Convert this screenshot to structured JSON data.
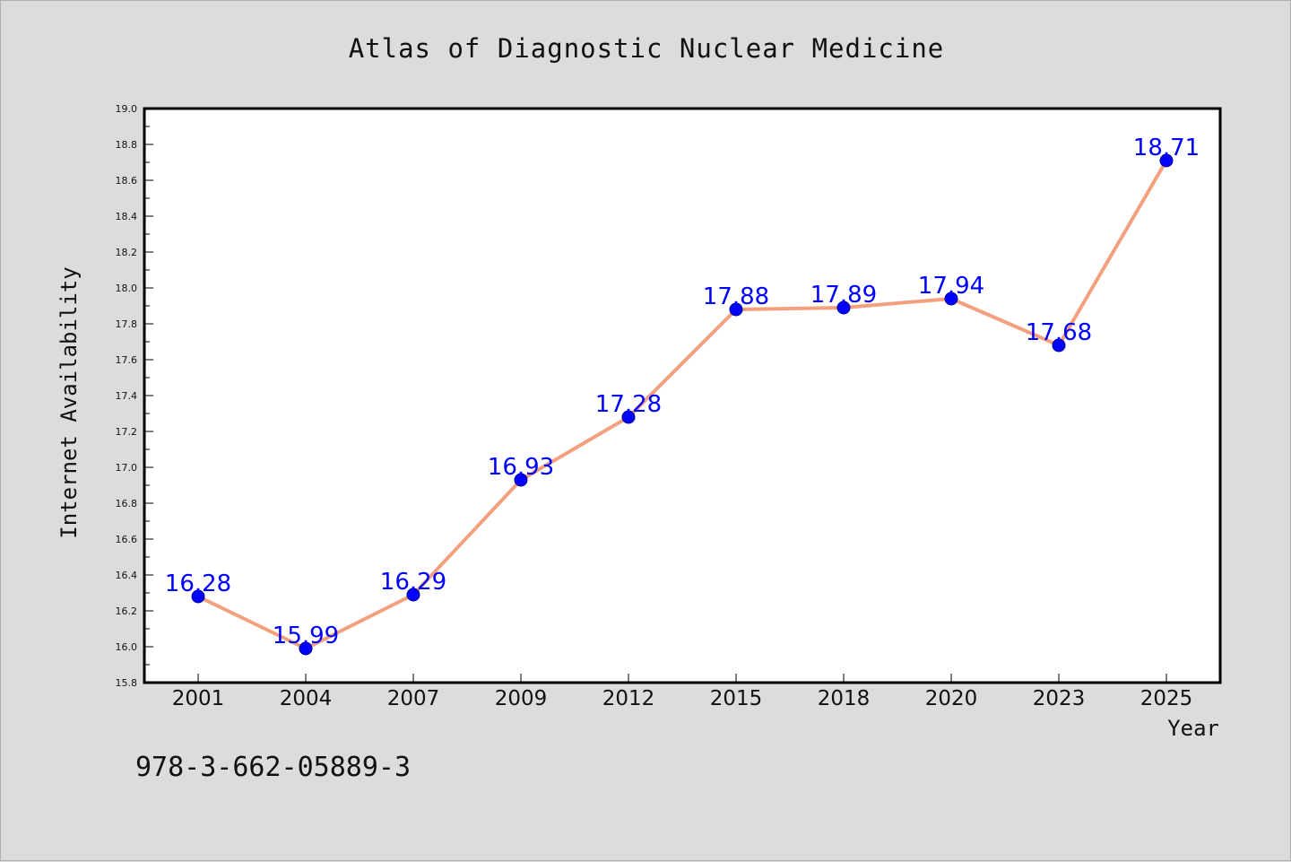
{
  "chart_data": {
    "type": "line",
    "title": "Atlas of Diagnostic Nuclear Medicine",
    "xlabel": "Year",
    "ylabel": "Internet Availability",
    "categories": [
      "2001",
      "2004",
      "2007",
      "2009",
      "2012",
      "2015",
      "2018",
      "2020",
      "2023",
      "2025"
    ],
    "series": [
      {
        "values": [
          16.28,
          15.99,
          16.29,
          16.93,
          17.28,
          17.88,
          17.89,
          17.94,
          17.68,
          18.71
        ],
        "data_labels": [
          "16.28",
          "15.99",
          "16.29",
          "16.93",
          "17.28",
          "17.88",
          "17.89",
          "17.94",
          "17.68",
          "18.71"
        ]
      }
    ],
    "ylim": [
      15.8,
      19.0
    ],
    "yticks": [
      "15.8",
      "16.0",
      "16.2",
      "16.4",
      "16.6",
      "16.8",
      "17.0",
      "17.2",
      "17.4",
      "17.6",
      "17.8",
      "18.0",
      "18.2",
      "18.4",
      "18.6",
      "18.8",
      "19.0"
    ],
    "grid": false,
    "legend": "none",
    "line_color": "#f4a07f",
    "marker_color": "#0000ff",
    "label_color": "#0000ff"
  },
  "footer": {
    "isbn": "978-3-662-05889-3"
  }
}
